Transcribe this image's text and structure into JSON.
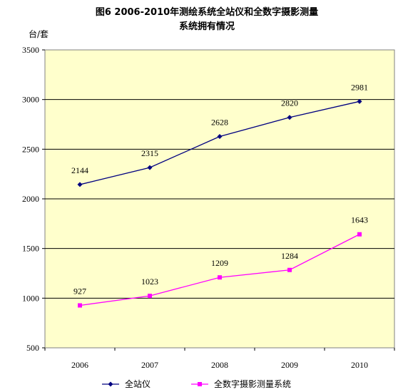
{
  "chart_data": {
    "type": "line",
    "title": "图6 2006-2010年测绘系统全站仪和全数字摄影测量",
    "subtitle": "系统拥有情况",
    "ylabel": "台/套",
    "xlabel": "",
    "categories": [
      "2006",
      "2007",
      "2008",
      "2009",
      "2010"
    ],
    "ylim": [
      500,
      3500
    ],
    "ytick_step": 500,
    "grid": true,
    "legend_position": "bottom",
    "plot_background": "#FFFFCC",
    "series": [
      {
        "name": "全站仪",
        "values": [
          2144,
          2315,
          2628,
          2820,
          2981
        ],
        "color": "#000080",
        "marker": "diamond"
      },
      {
        "name": "全数字摄影测量系统",
        "values": [
          927,
          1023,
          1209,
          1284,
          1643
        ],
        "color": "#FF00FF",
        "marker": "square"
      }
    ]
  }
}
